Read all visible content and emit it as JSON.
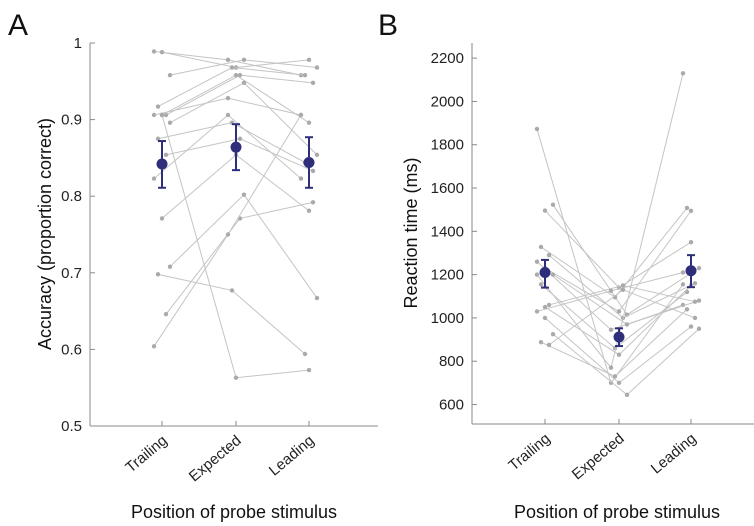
{
  "chart_data": [
    {
      "type": "scatter",
      "panel_label": "A",
      "xlabel": "Position of probe stimulus",
      "ylabel": "Accuracy (proportion correct)",
      "categories": [
        "Trailing",
        "Expected",
        "Leading"
      ],
      "ylim": [
        0.5,
        1.0
      ],
      "yticks": [
        0.5,
        0.6,
        0.7,
        0.8,
        0.9,
        1.0
      ],
      "ytick_labels": [
        "0.5",
        "0.6",
        "0.7",
        "0.8",
        "0.9",
        "1"
      ],
      "grid": false,
      "colors": {
        "mean": "#2e2e7a",
        "subject_point": "#aaaaaa",
        "subject_line": "#c4c4c4"
      },
      "means": [
        0.842,
        0.864,
        0.844
      ],
      "error_bars": [
        [
          0.811,
          0.872
        ],
        [
          0.834,
          0.894
        ],
        [
          0.811,
          0.877
        ]
      ],
      "subjects": [
        [
          0.989,
          0.978,
          0.958
        ],
        [
          0.988,
          0.968,
          0.978
        ],
        [
          0.958,
          0.978,
          0.968
        ],
        [
          0.917,
          0.968,
          0.958
        ],
        [
          0.906,
          0.958,
          0.948
        ],
        [
          0.906,
          0.928,
          0.906
        ],
        [
          0.906,
          0.958,
          0.896
        ],
        [
          0.896,
          0.948,
          0.854
        ],
        [
          0.875,
          0.896,
          0.844
        ],
        [
          0.854,
          0.875,
          0.833
        ],
        [
          0.823,
          0.906,
          0.823
        ],
        [
          0.771,
          0.854,
          0.781
        ],
        [
          0.708,
          0.802,
          0.667
        ],
        [
          0.698,
          0.677,
          0.594
        ],
        [
          0.646,
          0.771,
          0.792
        ],
        [
          0.604,
          0.75,
          0.906
        ],
        [
          0.906,
          0.563,
          0.573
        ]
      ]
    },
    {
      "type": "scatter",
      "panel_label": "B",
      "xlabel": "Position of probe stimulus",
      "ylabel": "Reaction time (ms)",
      "categories": [
        "Trailing",
        "Expected",
        "Leading"
      ],
      "ylim": [
        510,
        2270
      ],
      "yticks": [
        600,
        800,
        1000,
        1200,
        1400,
        1600,
        1800,
        2000,
        2200
      ],
      "ytick_labels": [
        "600",
        "800",
        "1000",
        "1200",
        "1400",
        "1600",
        "1800",
        "2000",
        "2200"
      ],
      "grid": false,
      "colors": {
        "mean": "#2e2e7a",
        "subject_point": "#aaaaaa",
        "subject_line": "#c4c4c4"
      },
      "means": [
        1210,
        912,
        1218
      ],
      "error_bars": [
        [
          1140,
          1268
        ],
        [
          870,
          952
        ],
        [
          1142,
          1290
        ]
      ],
      "subjects": [
        [
          1873,
          700,
          1155
        ],
        [
          1496,
          1140,
          1350
        ],
        [
          1523,
          1015,
          1230
        ],
        [
          1328,
          1095,
          1508
        ],
        [
          1290,
          1000,
          1160
        ],
        [
          1260,
          945,
          1060
        ],
        [
          1230,
          1030,
          1495
        ],
        [
          1200,
          970,
          1080
        ],
        [
          1155,
          860,
          1120
        ],
        [
          1060,
          1150,
          1075
        ],
        [
          1030,
          1125,
          1210
        ],
        [
          1000,
          700,
          960
        ],
        [
          925,
          645,
          950
        ],
        [
          888,
          730,
          1040
        ],
        [
          875,
          1130,
          1000
        ],
        [
          1200,
          770,
          2130
        ],
        [
          1050,
          830,
          1150
        ]
      ]
    }
  ]
}
